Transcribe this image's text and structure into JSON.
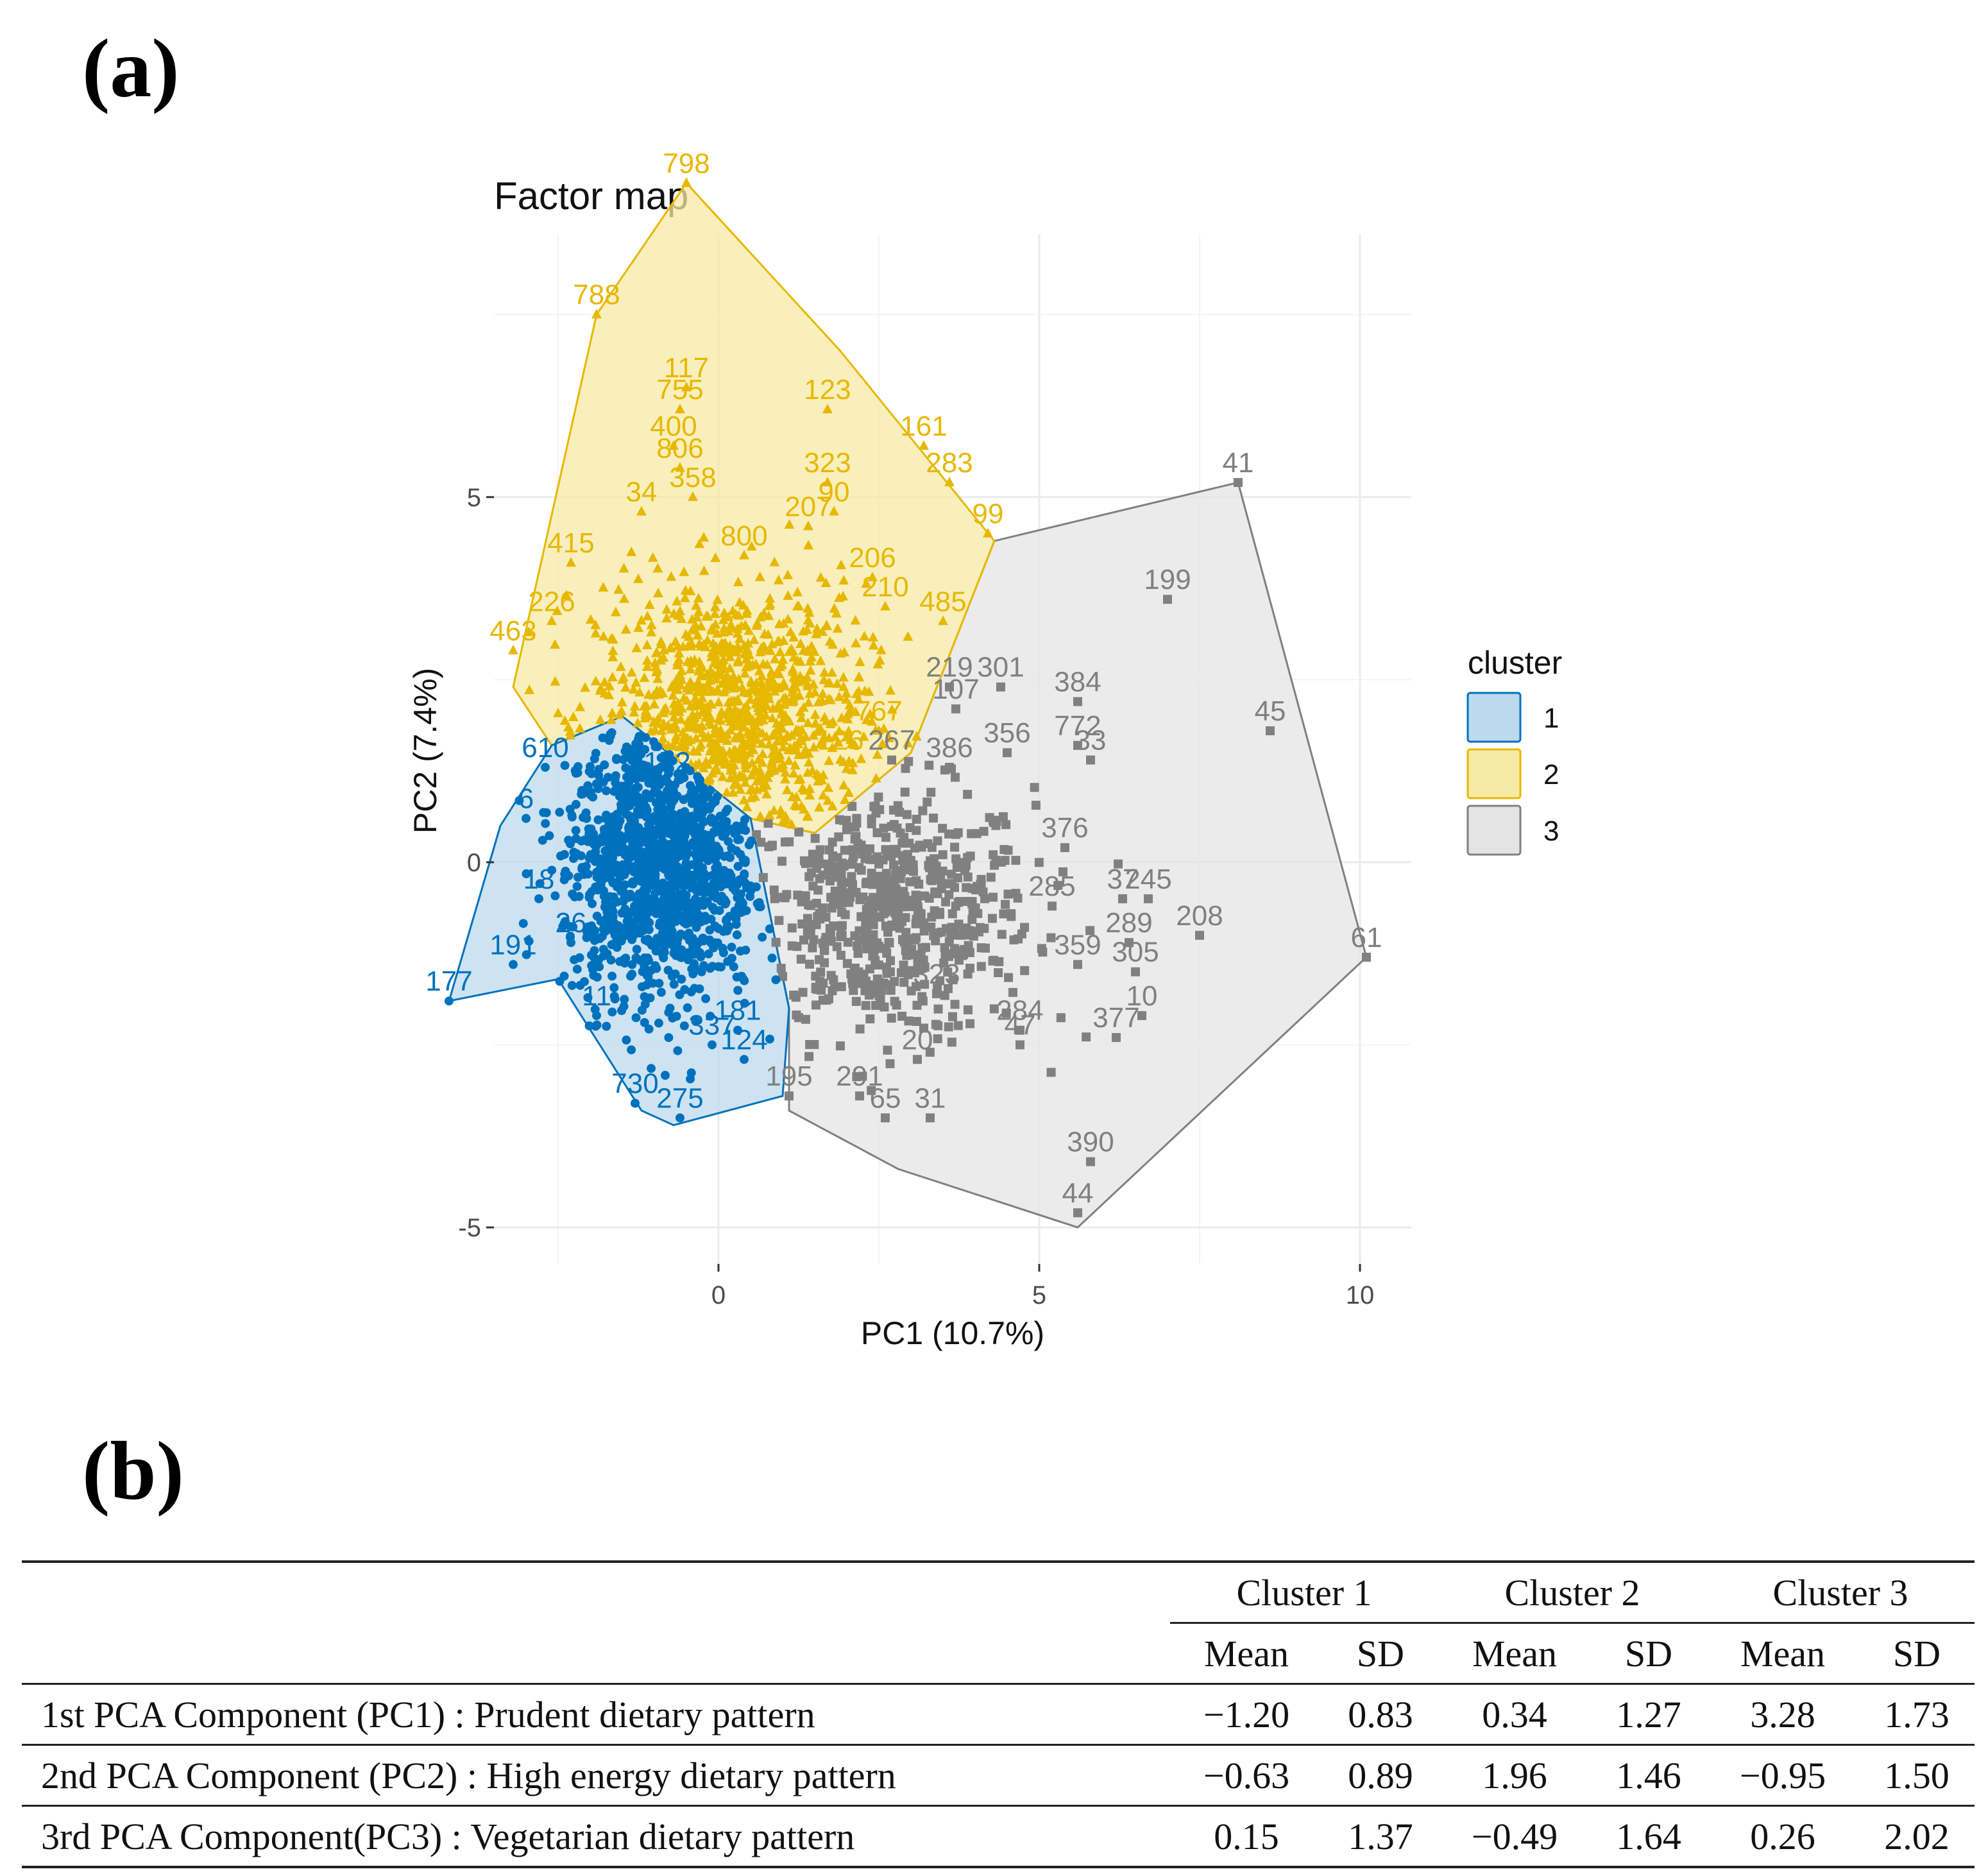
{
  "panels": {
    "a": "(a)",
    "b": "(b)"
  },
  "chart_data": {
    "type": "scatter",
    "title": "Factor map",
    "xlabel": "PC1 (10.7%)",
    "ylabel": "PC2 (7.4%)",
    "xlim": [
      -3.5,
      10.8
    ],
    "ylim": [
      -5.5,
      8.6
    ],
    "x_ticks": [
      0,
      5,
      10
    ],
    "y_ticks": [
      -5,
      0,
      5
    ],
    "grid": true,
    "legend": {
      "title": "cluster",
      "position": "right",
      "entries": [
        "1",
        "2",
        "3"
      ]
    },
    "colors": {
      "1": "#0072BD",
      "2": "#E7B800",
      "3": "#808080"
    },
    "hulls": {
      "1": [
        [
          -4.2,
          -1.9
        ],
        [
          -2.5,
          -1.6
        ],
        [
          -1.2,
          -3.4
        ],
        [
          -0.7,
          -3.6
        ],
        [
          1.0,
          -3.2
        ],
        [
          1.1,
          -2.0
        ],
        [
          0.5,
          0.6
        ],
        [
          -1.5,
          2.0
        ],
        [
          -2.6,
          1.6
        ],
        [
          -3.4,
          0.5
        ]
      ],
      "2": [
        [
          -3.2,
          2.4
        ],
        [
          -1.9,
          7.5
        ],
        [
          -0.5,
          9.3
        ],
        [
          1.9,
          7.0
        ],
        [
          4.3,
          4.4
        ],
        [
          3.0,
          1.5
        ],
        [
          1.5,
          0.4
        ],
        [
          0.5,
          0.6
        ],
        [
          -1.5,
          2.0
        ],
        [
          -2.6,
          1.6
        ]
      ],
      "3": [
        [
          1.1,
          -3.4
        ],
        [
          2.8,
          -4.2
        ],
        [
          5.6,
          -5.0
        ],
        [
          10.1,
          -1.3
        ],
        [
          8.1,
          5.2
        ],
        [
          4.3,
          4.4
        ],
        [
          3.0,
          1.5
        ],
        [
          1.5,
          0.4
        ],
        [
          0.5,
          0.6
        ],
        [
          1.1,
          -2.0
        ]
      ]
    },
    "clusters": [
      {
        "name": "1",
        "dense_center": [
          -0.9,
          0.0
        ],
        "labeled_points": [
          {
            "x": -4.2,
            "y": -1.9,
            "label": "177"
          },
          {
            "x": -3.2,
            "y": -1.4,
            "label": "191"
          },
          {
            "x": -2.8,
            "y": -0.5,
            "label": "18"
          },
          {
            "x": -2.3,
            "y": -1.1,
            "label": "26"
          },
          {
            "x": -3.0,
            "y": 0.6,
            "label": "6"
          },
          {
            "x": -2.7,
            "y": 1.3,
            "label": "610"
          },
          {
            "x": -1.9,
            "y": -2.1,
            "label": "11"
          },
          {
            "x": -1.3,
            "y": -3.3,
            "label": "730"
          },
          {
            "x": -0.6,
            "y": -3.5,
            "label": "275"
          },
          {
            "x": -0.1,
            "y": -2.5,
            "label": "337"
          },
          {
            "x": 0.3,
            "y": -2.3,
            "label": "181"
          },
          {
            "x": 0.4,
            "y": -2.7,
            "label": "124"
          },
          {
            "x": -0.8,
            "y": 1.1,
            "label": "172"
          }
        ]
      },
      {
        "name": "2",
        "dense_center": [
          0.2,
          2.0
        ],
        "labeled_points": [
          {
            "x": -0.5,
            "y": 9.3,
            "label": "798"
          },
          {
            "x": -1.9,
            "y": 7.5,
            "label": "788"
          },
          {
            "x": -0.5,
            "y": 6.5,
            "label": "117"
          },
          {
            "x": -0.6,
            "y": 6.2,
            "label": "755"
          },
          {
            "x": 1.7,
            "y": 6.2,
            "label": "123"
          },
          {
            "x": 3.2,
            "y": 5.7,
            "label": "161"
          },
          {
            "x": 3.6,
            "y": 5.2,
            "label": "283"
          },
          {
            "x": 4.2,
            "y": 4.5,
            "label": "99"
          },
          {
            "x": 1.7,
            "y": 5.2,
            "label": "323"
          },
          {
            "x": -0.7,
            "y": 5.7,
            "label": "400"
          },
          {
            "x": -0.6,
            "y": 5.4,
            "label": "806"
          },
          {
            "x": -0.4,
            "y": 5.0,
            "label": "358"
          },
          {
            "x": -1.2,
            "y": 4.8,
            "label": "34"
          },
          {
            "x": 1.4,
            "y": 4.6,
            "label": "207"
          },
          {
            "x": 1.8,
            "y": 4.8,
            "label": "90"
          },
          {
            "x": -2.3,
            "y": 4.1,
            "label": "415"
          },
          {
            "x": 0.4,
            "y": 4.2,
            "label": "800"
          },
          {
            "x": 2.4,
            "y": 3.9,
            "label": "206"
          },
          {
            "x": 2.6,
            "y": 3.5,
            "label": "210"
          },
          {
            "x": 3.5,
            "y": 3.3,
            "label": "485"
          },
          {
            "x": -3.2,
            "y": 2.9,
            "label": "463"
          },
          {
            "x": -2.6,
            "y": 3.3,
            "label": "226"
          },
          {
            "x": 2.5,
            "y": 1.8,
            "label": "767"
          },
          {
            "x": 1.9,
            "y": 1.4,
            "label": "126"
          }
        ]
      },
      {
        "name": "3",
        "dense_center": [
          2.6,
          -0.7
        ],
        "labeled_points": [
          {
            "x": 8.1,
            "y": 5.2,
            "label": "41"
          },
          {
            "x": 7.0,
            "y": 3.6,
            "label": "199"
          },
          {
            "x": 8.6,
            "y": 1.8,
            "label": "45"
          },
          {
            "x": 3.6,
            "y": 2.4,
            "label": "219"
          },
          {
            "x": 4.4,
            "y": 2.4,
            "label": "301"
          },
          {
            "x": 5.6,
            "y": 2.2,
            "label": "384"
          },
          {
            "x": 3.7,
            "y": 2.1,
            "label": "107"
          },
          {
            "x": 5.6,
            "y": 1.6,
            "label": "772"
          },
          {
            "x": 4.5,
            "y": 1.5,
            "label": "356"
          },
          {
            "x": 3.6,
            "y": 1.3,
            "label": "386"
          },
          {
            "x": 5.8,
            "y": 1.4,
            "label": "33"
          },
          {
            "x": 2.7,
            "y": 1.4,
            "label": "267"
          },
          {
            "x": 5.4,
            "y": 0.2,
            "label": "376"
          },
          {
            "x": 6.3,
            "y": -0.5,
            "label": "37"
          },
          {
            "x": 6.7,
            "y": -0.5,
            "label": "245"
          },
          {
            "x": 7.5,
            "y": -1.0,
            "label": "208"
          },
          {
            "x": 10.1,
            "y": -1.3,
            "label": "61"
          },
          {
            "x": 5.2,
            "y": -0.6,
            "label": "285"
          },
          {
            "x": 6.4,
            "y": -1.1,
            "label": "289"
          },
          {
            "x": 5.6,
            "y": -1.4,
            "label": "359"
          },
          {
            "x": 6.5,
            "y": -1.5,
            "label": "305"
          },
          {
            "x": 6.6,
            "y": -2.1,
            "label": "10"
          },
          {
            "x": 6.2,
            "y": -2.4,
            "label": "377"
          },
          {
            "x": 4.7,
            "y": -2.3,
            "label": "284"
          },
          {
            "x": 4.7,
            "y": -2.5,
            "label": "47"
          },
          {
            "x": 3.1,
            "y": -2.7,
            "label": "20"
          },
          {
            "x": 3.4,
            "y": -1.8,
            "label": "323"
          },
          {
            "x": 2.2,
            "y": -3.2,
            "label": "291"
          },
          {
            "x": 1.1,
            "y": -3.2,
            "label": "195"
          },
          {
            "x": 2.6,
            "y": -3.5,
            "label": "65"
          },
          {
            "x": 3.3,
            "y": -3.5,
            "label": "31"
          },
          {
            "x": 5.8,
            "y": -4.1,
            "label": "390"
          },
          {
            "x": 5.6,
            "y": -4.8,
            "label": "44"
          }
        ]
      }
    ]
  },
  "table": {
    "cluster_headers": [
      "Cluster 1",
      "Cluster 2",
      "Cluster 3"
    ],
    "sub_headers": [
      "Mean",
      "SD",
      "Mean",
      "SD",
      "Mean",
      "SD"
    ],
    "rows": [
      {
        "label": "1st PCA Component (PC1) : Prudent dietary pattern",
        "values": [
          "−1.20",
          "0.83",
          "0.34",
          "1.27",
          "3.28",
          "1.73"
        ]
      },
      {
        "label": "2nd PCA Component (PC2) : High energy dietary pattern",
        "values": [
          "−0.63",
          "0.89",
          "1.96",
          "1.46",
          "−0.95",
          "1.50"
        ]
      },
      {
        "label": "3rd PCA Component(PC3) : Vegetarian dietary pattern",
        "values": [
          "0.15",
          "1.37",
          "−0.49",
          "1.64",
          "0.26",
          "2.02"
        ]
      }
    ]
  }
}
